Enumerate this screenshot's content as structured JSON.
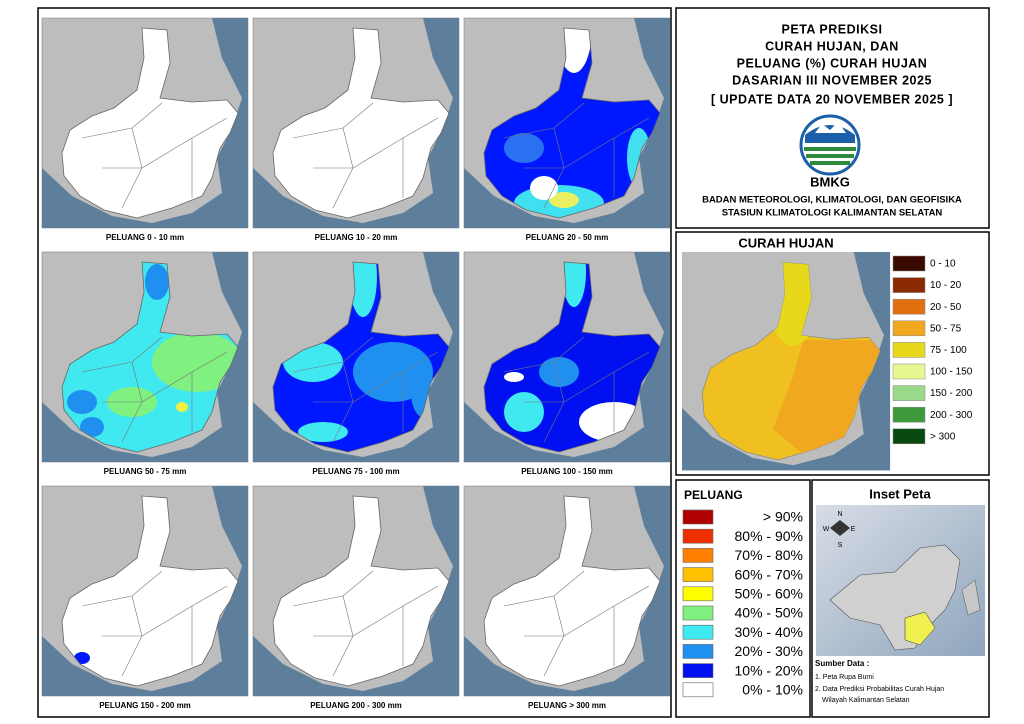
{
  "header": {
    "title_lines": [
      "PETA PREDIKSI",
      "CURAH HUJAN, DAN",
      "PELUANG (%) CURAH HUJAN",
      "DASARIAN III NOVEMBER 2025",
      "[ UPDATE DATA 20 NOVEMBER 2025 ]"
    ],
    "logo_text": "BMKG",
    "agency_lines": [
      "BADAN METEOROLOGI, KLIMATOLOGI, DAN GEOFISIKA",
      "STASIUN KLIMATOLOGI KALIMANTAN SELATAN"
    ]
  },
  "maps": [
    {
      "caption": "PELUANG 0 - 10 mm"
    },
    {
      "caption": "PELUANG 10 - 20 mm"
    },
    {
      "caption": "PELUANG 20 - 50 mm"
    },
    {
      "caption": "PELUANG 50 - 75 mm"
    },
    {
      "caption": "PELUANG 75 - 100 mm"
    },
    {
      "caption": "PELUANG 100 - 150 mm"
    },
    {
      "caption": "PELUANG 150 - 200 mm"
    },
    {
      "caption": "PELUANG 200 - 300 mm"
    },
    {
      "caption": "PELUANG > 300 mm"
    }
  ],
  "rainfall_legend": {
    "title": "CURAH HUJAN",
    "items": [
      {
        "label": "0 - 10",
        "color": "#3a0a00"
      },
      {
        "label": "10 - 20",
        "color": "#8a2a00"
      },
      {
        "label": "20 - 50",
        "color": "#e07010"
      },
      {
        "label": "50 - 75",
        "color": "#f0a820"
      },
      {
        "label": "75 - 100",
        "color": "#e8d81c"
      },
      {
        "label": "100 - 150",
        "color": "#e8f890"
      },
      {
        "label": "150 - 200",
        "color": "#9ad88a"
      },
      {
        "label": "200 - 300",
        "color": "#3e9a3a"
      },
      {
        "label": "> 300",
        "color": "#0a4a10"
      }
    ]
  },
  "probability_legend": {
    "title": "PELUANG",
    "items": [
      {
        "label": "> 90%",
        "color": "#b00000"
      },
      {
        "label": "80% - 90%",
        "color": "#f03000"
      },
      {
        "label": "70% - 80%",
        "color": "#ff8000"
      },
      {
        "label": "60% - 70%",
        "color": "#ffc000"
      },
      {
        "label": "50% - 60%",
        "color": "#ffff00"
      },
      {
        "label": "40% - 50%",
        "color": "#80f080"
      },
      {
        "label": "30% - 40%",
        "color": "#40e8f0"
      },
      {
        "label": "20% - 30%",
        "color": "#2090f0"
      },
      {
        "label": "10% - 20%",
        "color": "#0010f0"
      },
      {
        "label": "0% - 10%",
        "color": "#ffffff"
      }
    ]
  },
  "inset": {
    "title": "Inset Peta",
    "compass": [
      "N",
      "E",
      "S",
      "W"
    ],
    "source_title": "Sumber Data :",
    "source_lines": [
      "1. Peta Rupa Bumi",
      "2. Data Prediksi Probabilitas Curah Hujan",
      "Wilayah Kalimantan Selatan"
    ]
  }
}
